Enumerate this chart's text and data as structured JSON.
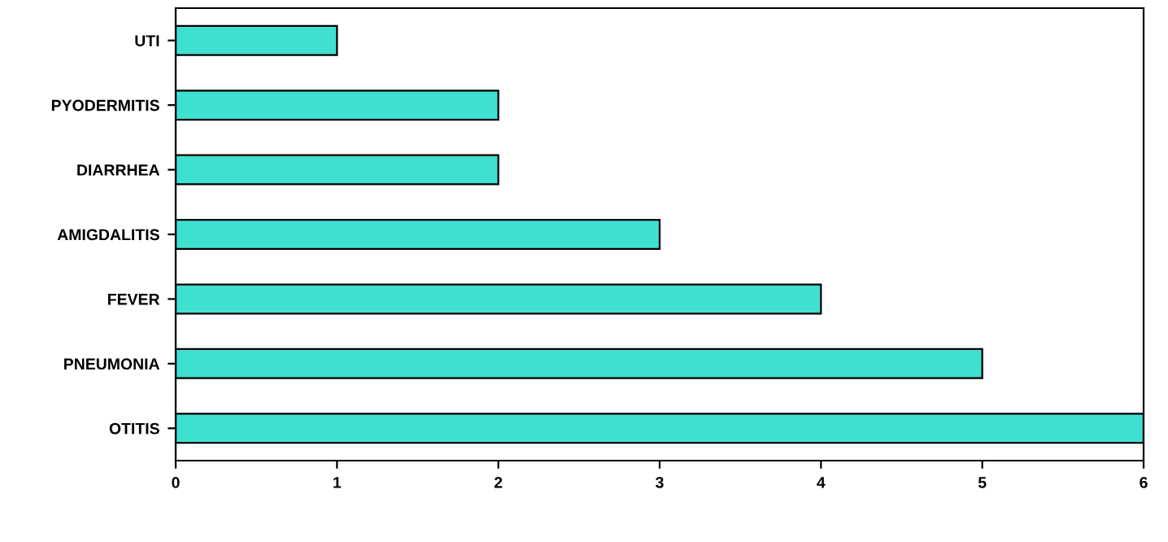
{
  "chart_data": {
    "type": "bar",
    "orientation": "horizontal",
    "categories": [
      "UTI",
      "PYODERMITIS",
      "DIARRHEA",
      "AMIGDALITIS",
      "FEVER",
      "PNEUMONIA",
      "OTITIS"
    ],
    "values": [
      1,
      2,
      2,
      3,
      4,
      5,
      6
    ],
    "color": "#40e0d0",
    "xlim": [
      0,
      6
    ],
    "xticks": [
      0,
      1,
      2,
      3,
      4,
      5,
      6
    ],
    "grid": false,
    "legend": false
  }
}
